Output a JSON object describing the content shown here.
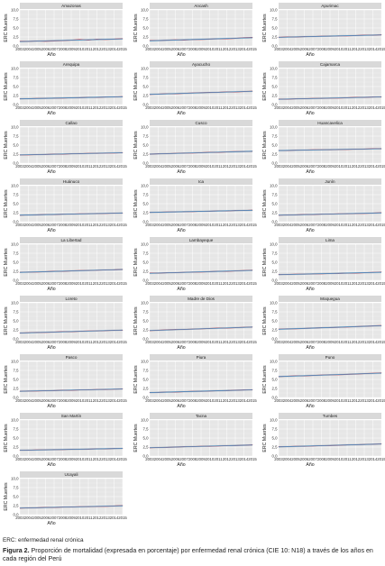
{
  "chart_data": {
    "type": "line",
    "layout": "small-multiples",
    "xlabel": "Año",
    "ylabel": "ERC Muertes",
    "x": [
      2003,
      2004,
      2005,
      2006,
      2007,
      2008,
      2009,
      2010,
      2011,
      2012,
      2013,
      2014,
      2015
    ],
    "ylim": [
      0,
      10
    ],
    "yticks": [
      "0,0",
      "2,5",
      "5,0",
      "7,5",
      "10,0"
    ],
    "xticks": [
      "2003",
      "2004",
      "2005",
      "2006",
      "2007",
      "2008",
      "2009",
      "2010",
      "2011",
      "2012",
      "2013",
      "2014",
      "2015"
    ],
    "grid": true,
    "series_colors": {
      "observed": "#d6404a",
      "trend": "#4a8fc4",
      "band": "#b8bcc2",
      "panel_bg": "#e6e6e6"
    },
    "panels": [
      {
        "name": "Amazonas",
        "values": [
          1.3,
          1.3,
          1.4,
          1.3,
          1.4,
          1.5,
          1.6,
          1.8,
          1.6,
          1.9,
          1.8,
          1.9,
          2.0
        ]
      },
      {
        "name": "Ancash",
        "values": [
          1.5,
          1.5,
          1.6,
          1.7,
          1.6,
          1.8,
          1.8,
          1.9,
          2.0,
          2.0,
          2.1,
          2.3,
          2.4
        ]
      },
      {
        "name": "Apurimac",
        "values": [
          2.4,
          2.5,
          2.5,
          2.6,
          2.6,
          2.7,
          2.7,
          2.8,
          2.8,
          2.9,
          3.0,
          3.0,
          3.1
        ]
      },
      {
        "name": "Arequipa",
        "values": [
          1.6,
          1.6,
          1.7,
          1.7,
          1.8,
          1.8,
          1.9,
          1.9,
          2.0,
          2.0,
          2.1,
          2.1,
          2.2
        ]
      },
      {
        "name": "Ayacucho",
        "values": [
          2.8,
          2.9,
          3.0,
          3.0,
          3.1,
          3.2,
          3.3,
          3.4,
          3.4,
          3.5,
          3.5,
          3.6,
          3.7
        ]
      },
      {
        "name": "Cajamarca",
        "values": [
          1.5,
          1.5,
          1.6,
          1.6,
          1.7,
          1.7,
          1.8,
          1.8,
          1.9,
          2.0,
          2.0,
          2.1,
          2.1
        ]
      },
      {
        "name": "Callao",
        "values": [
          2.3,
          2.3,
          2.4,
          2.4,
          2.5,
          2.5,
          2.6,
          2.6,
          2.7,
          2.7,
          2.8,
          2.8,
          2.9
        ]
      },
      {
        "name": "Cusco",
        "values": [
          2.5,
          2.6,
          2.6,
          2.7,
          2.8,
          2.8,
          2.9,
          3.0,
          3.0,
          3.1,
          3.2,
          3.2,
          3.3
        ]
      },
      {
        "name": "Huancavelica",
        "values": [
          3.5,
          3.5,
          3.6,
          3.6,
          3.7,
          3.7,
          3.7,
          3.8,
          3.8,
          3.9,
          3.9,
          4.0,
          4.0
        ]
      },
      {
        "name": "Huánuco",
        "values": [
          1.8,
          1.9,
          1.9,
          2.0,
          2.0,
          2.1,
          2.1,
          2.2,
          2.2,
          2.3,
          2.3,
          2.4,
          2.4
        ]
      },
      {
        "name": "Ica",
        "values": [
          2.6,
          2.6,
          2.7,
          2.7,
          2.8,
          2.8,
          2.9,
          2.9,
          3.0,
          3.0,
          3.1,
          3.1,
          3.2
        ]
      },
      {
        "name": "Junín",
        "values": [
          1.8,
          1.9,
          1.9,
          2.0,
          2.0,
          2.1,
          2.1,
          2.2,
          2.2,
          2.3,
          2.3,
          2.4,
          2.5
        ]
      },
      {
        "name": "La Libertad",
        "values": [
          2.2,
          2.3,
          2.3,
          2.4,
          2.5,
          2.5,
          2.6,
          2.7,
          2.7,
          2.8,
          2.9,
          2.9,
          3.0
        ]
      },
      {
        "name": "Lambayeque",
        "values": [
          2.0,
          2.0,
          2.1,
          2.1,
          2.2,
          2.3,
          2.3,
          2.4,
          2.5,
          2.5,
          2.6,
          2.7,
          2.8
        ]
      },
      {
        "name": "Lima",
        "values": [
          1.6,
          1.6,
          1.7,
          1.7,
          1.8,
          1.8,
          1.9,
          1.9,
          2.0,
          2.0,
          2.1,
          2.2,
          2.3
        ]
      },
      {
        "name": "Loreto",
        "values": [
          1.6,
          1.7,
          1.8,
          1.8,
          1.9,
          2.0,
          2.0,
          2.1,
          2.2,
          2.2,
          2.3,
          2.4,
          2.4
        ]
      },
      {
        "name": "Madre de Dios",
        "values": [
          2.3,
          2.4,
          2.5,
          2.6,
          2.6,
          2.7,
          2.8,
          2.9,
          3.0,
          3.0,
          3.1,
          3.2,
          3.3
        ]
      },
      {
        "name": "Moquegua",
        "values": [
          2.7,
          2.8,
          2.8,
          2.9,
          3.0,
          3.1,
          3.1,
          3.2,
          3.3,
          3.4,
          3.5,
          3.6,
          3.7
        ]
      },
      {
        "name": "Pasco",
        "values": [
          1.7,
          1.8,
          1.8,
          1.9,
          1.9,
          2.0,
          2.0,
          2.1,
          2.1,
          2.2,
          2.2,
          2.3,
          2.4
        ]
      },
      {
        "name": "Piura",
        "values": [
          1.4,
          1.4,
          1.5,
          1.5,
          1.6,
          1.7,
          1.7,
          1.8,
          1.9,
          1.9,
          2.0,
          2.1,
          2.1
        ]
      },
      {
        "name": "Puno",
        "values": [
          5.8,
          5.9,
          6.0,
          6.0,
          6.1,
          6.2,
          6.3,
          6.3,
          6.4,
          6.5,
          6.6,
          6.7,
          6.8
        ]
      },
      {
        "name": "San Martín",
        "values": [
          1.6,
          1.6,
          1.7,
          1.7,
          1.8,
          1.8,
          1.9,
          1.9,
          1.9,
          2.0,
          2.0,
          2.1,
          2.1
        ]
      },
      {
        "name": "Tacna",
        "values": [
          2.3,
          2.4,
          2.4,
          2.5,
          2.6,
          2.6,
          2.7,
          2.7,
          2.8,
          2.9,
          2.9,
          3.0,
          3.1
        ]
      },
      {
        "name": "Tumbes",
        "values": [
          2.6,
          2.6,
          2.7,
          2.7,
          2.8,
          2.9,
          2.9,
          3.0,
          3.1,
          3.1,
          3.2,
          3.3,
          3.4
        ]
      },
      {
        "name": "Ucayali",
        "values": [
          1.8,
          1.9,
          1.9,
          2.0,
          2.0,
          2.1,
          2.1,
          2.2,
          2.2,
          2.3,
          2.3,
          2.4,
          2.5
        ]
      }
    ]
  },
  "footnote": "ERC: enfermedad renal crónica",
  "caption": {
    "label": "Figura 2.",
    "text": " Proporción de mortalidad (expresada en porcentaje) por enfermedad renal crónica (CIE 10: N18) a través de los años en cada región del Perú"
  }
}
